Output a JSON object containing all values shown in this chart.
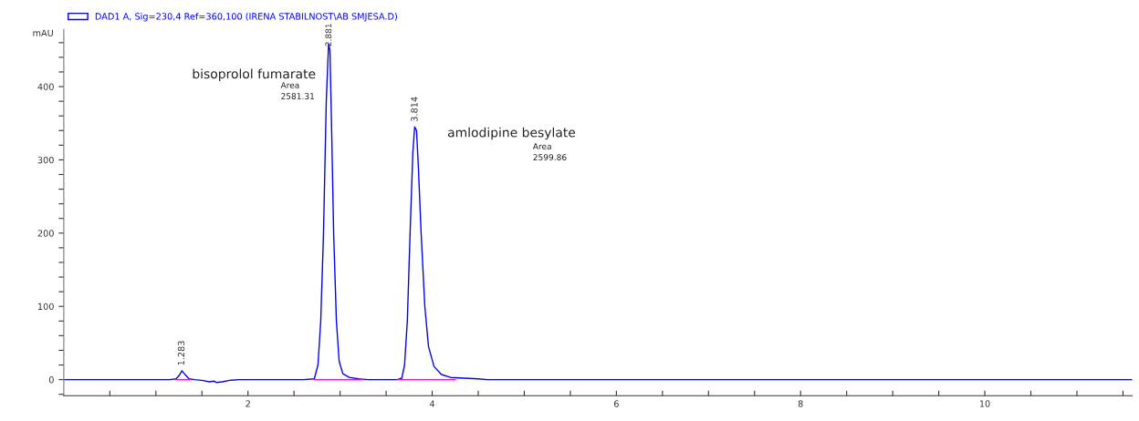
{
  "chart_data": {
    "type": "line",
    "ylabel": "mAU",
    "legend": "top left",
    "grid": false,
    "marker": "none",
    "line_style": "solid",
    "xlim": [
      0,
      11.6
    ],
    "ylim": [
      -22,
      478
    ],
    "xticks": [
      {
        "value": 0.5,
        "label": null
      },
      {
        "value": 1,
        "label": null
      },
      {
        "value": 1.5,
        "label": null
      },
      2,
      {
        "value": 2.5,
        "label": null
      },
      {
        "value": 3,
        "label": null
      },
      {
        "value": 3.5,
        "label": null
      },
      4,
      {
        "value": 4.5,
        "label": null
      },
      {
        "value": 5,
        "label": null
      },
      {
        "value": 5.5,
        "label": null
      },
      6,
      {
        "value": 6.5,
        "label": null
      },
      {
        "value": 7,
        "label": null
      },
      {
        "value": 7.5,
        "label": null
      },
      8,
      {
        "value": 8.5,
        "label": null
      },
      {
        "value": 9,
        "label": null
      },
      {
        "value": 9.5,
        "label": null
      },
      10,
      {
        "value": 10.5,
        "label": null
      },
      {
        "value": 11,
        "label": null
      },
      {
        "value": 11.5,
        "label": null
      }
    ],
    "yticks": [
      {
        "value": -20,
        "label": null
      },
      0,
      {
        "value": 20,
        "label": null
      },
      {
        "value": 40,
        "label": null
      },
      {
        "value": 60,
        "label": null
      },
      {
        "value": 80,
        "label": null
      },
      100,
      {
        "value": 120,
        "label": null
      },
      {
        "value": 140,
        "label": null
      },
      {
        "value": 160,
        "label": null
      },
      {
        "value": 180,
        "label": null
      },
      200,
      {
        "value": 220,
        "label": null
      },
      {
        "value": 240,
        "label": null
      },
      {
        "value": 260,
        "label": null
      },
      {
        "value": 280,
        "label": null
      },
      300,
      {
        "value": 320,
        "label": null
      },
      {
        "value": 340,
        "label": null
      },
      {
        "value": 360,
        "label": null
      },
      {
        "value": 380,
        "label": null
      },
      400,
      {
        "value": 420,
        "label": null
      },
      {
        "value": 440,
        "label": null
      },
      {
        "value": 460,
        "label": null
      }
    ],
    "series": [
      {
        "name": "DAD1 A, Sig=230,4 Ref=360,100 (IRENA STABILNOST\\AB SMJESA.D)",
        "color": "#0000ff",
        "x": [
          0,
          1.15,
          1.22,
          1.26,
          1.283,
          1.31,
          1.36,
          1.42,
          1.5,
          1.58,
          1.63,
          1.66,
          1.72,
          1.8,
          1.9,
          2.6,
          2.72,
          2.76,
          2.79,
          2.82,
          2.85,
          2.875,
          2.89,
          2.91,
          2.93,
          2.96,
          2.99,
          3.03,
          3.1,
          3.2,
          3.3,
          3.62,
          3.67,
          3.7,
          3.73,
          3.76,
          3.79,
          3.81,
          3.83,
          3.85,
          3.88,
          3.92,
          3.96,
          4.02,
          4.1,
          4.2,
          4.35,
          4.5,
          4.6,
          11.6
        ],
        "values": [
          0,
          0,
          1,
          7,
          12,
          8,
          1,
          0,
          -1,
          -3,
          -2,
          -4,
          -3,
          -1,
          0,
          0,
          1,
          20,
          80,
          200,
          380,
          458,
          450,
          330,
          200,
          80,
          25,
          8,
          3,
          1,
          0,
          0,
          2,
          20,
          80,
          200,
          310,
          345,
          340,
          290,
          200,
          100,
          45,
          18,
          7,
          3,
          2,
          1,
          0,
          0
        ]
      },
      {
        "color": "#ff00ff",
        "x": [
          1.22,
          1.38
        ],
        "values": [
          0,
          0
        ]
      },
      {
        "color": "#ff00ff",
        "x": [
          2.72,
          3.25
        ],
        "values": [
          0,
          0
        ]
      },
      {
        "color": "#ff00ff",
        "x": [
          3.63,
          4.25
        ],
        "values": [
          0,
          0
        ]
      }
    ],
    "annotations": [
      {
        "text": "1.283",
        "x": 1.283,
        "y": 12
      },
      {
        "text": "2.881",
        "x": 2.881,
        "y": 458
      },
      "bisoprolol fumarate",
      "Area",
      "2581.31",
      {
        "text": "3.814",
        "x": 3.814,
        "y": 345
      },
      "amlodipine besylate",
      "Area",
      "2599.86"
    ]
  }
}
